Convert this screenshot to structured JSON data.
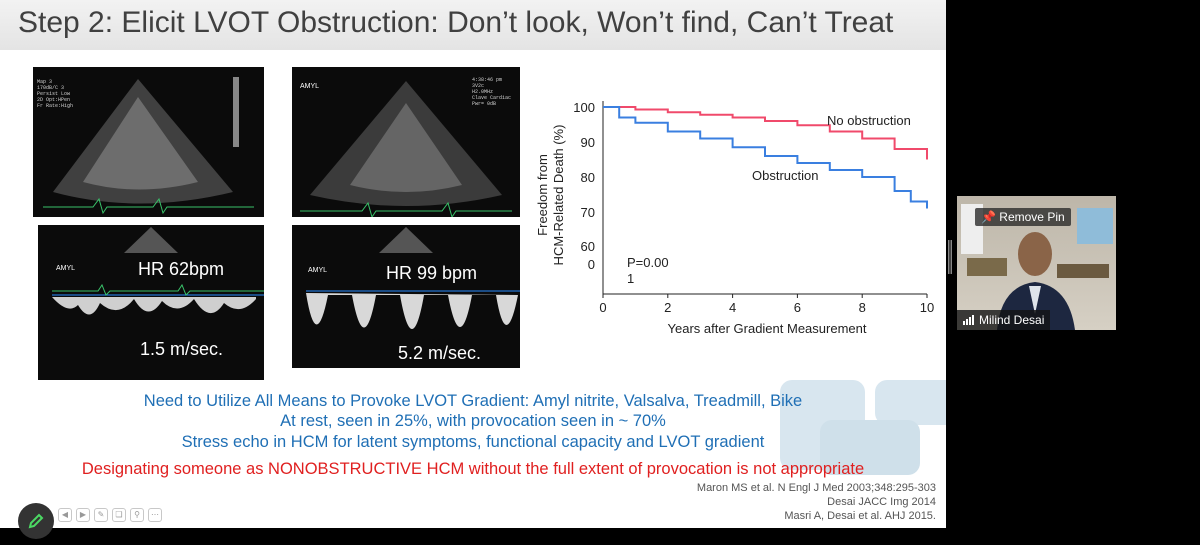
{
  "slide": {
    "title": "Step 2: Elicit LVOT Obstruction: Don’t look, Won’t find, Can’t Treat",
    "echo_labels": {
      "hr1": "HR 62bpm",
      "hr2": "HR 99 bpm",
      "vel1": "1.5 m/sec.",
      "vel2": "5.2 m/sec.",
      "amyl1": "AMYL",
      "amyl2": "AMYL",
      "amyl3": "AMYL"
    },
    "bullets": [
      "Need to Utilize All Means to Provoke LVOT Gradient: Amyl nitrite, Valsalva, Treadmill, Bike",
      "At rest, seen in 25%, with provocation seen in ~ 70%",
      "Stress echo in HCM for latent symptoms, functional capacity and LVOT gradient"
    ],
    "warning": "Designating someone as NONOBSTRUCTIVE HCM without the full extent of provocation is not appropriate",
    "references": [
      "Maron MS et al. N Engl J Med 2003;348:295-303",
      "Desai JACC Img 2014",
      "Masri A, Desai et al. AHJ 2015."
    ]
  },
  "chart_data": {
    "type": "line",
    "ylabel": "Freedom from HCM-Related Death (%)",
    "xlabel": "Years after Gradient Measurement",
    "xlim": [
      0,
      10
    ],
    "x_ticks": [
      "0",
      "2",
      "4",
      "6",
      "8",
      "10"
    ],
    "y_ticks": [
      "100",
      "90",
      "80",
      "70",
      "60",
      "0"
    ],
    "annotation": "P=0.00\n1",
    "annotation_line1": "P=0.00",
    "annotation_line2": "1",
    "series": [
      {
        "name": "No obstruction",
        "color": "#f04a6b",
        "x": [
          0,
          1,
          2,
          3,
          4,
          5,
          6,
          7,
          8,
          9,
          10
        ],
        "y": [
          100,
          99.3,
          98.5,
          97.8,
          97,
          96,
          94.8,
          93,
          91,
          88,
          85
        ]
      },
      {
        "name": "Obstruction",
        "color": "#3a7fe0",
        "x": [
          0,
          0.5,
          1,
          2,
          3,
          4,
          5,
          6,
          7,
          8,
          9,
          9.5,
          10
        ],
        "y": [
          100,
          97,
          95.5,
          93,
          91,
          88.5,
          86,
          84,
          82,
          80,
          76,
          73,
          71
        ]
      }
    ]
  },
  "video": {
    "remove_pin": "Remove Pin",
    "participant_name": "Milind Desai"
  },
  "colors": {
    "title": "#404040",
    "blue_text": "#1f6fb5",
    "red_text": "#e02020"
  }
}
